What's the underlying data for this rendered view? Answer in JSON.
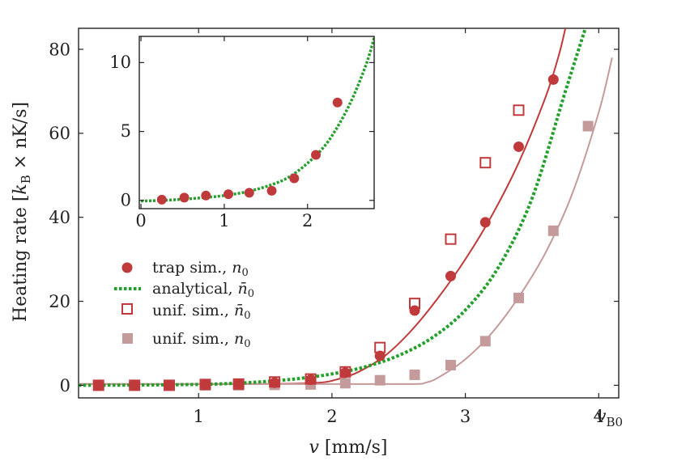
{
  "chart_data": [
    {
      "type": "line",
      "xlabel": "v [mm/s]",
      "ylabel": "Heating rate [k_B × nK/s]",
      "xlim": [
        0.1,
        4.15
      ],
      "ylim": [
        -3,
        85
      ],
      "x_ticks": [
        1,
        2,
        3,
        4
      ],
      "x_tick_labels": [
        "1",
        "2",
        "3",
        "4"
      ],
      "extra_x_label": "v_B0",
      "y_ticks": [
        0,
        20,
        40,
        60,
        80
      ],
      "y_tick_labels": [
        "0",
        "20",
        "40",
        "60",
        "80"
      ],
      "grid": false,
      "legend_position": "lower-left",
      "series": [
        {
          "name": "trap sim., n_0",
          "marker": "filled-circle",
          "color": "#c0393b",
          "x": [
            0.25,
            0.52,
            0.78,
            1.05,
            1.3,
            1.57,
            1.84,
            2.1,
            2.36,
            2.62,
            2.89,
            3.15,
            3.4,
            3.66
          ],
          "y": [
            0,
            0,
            0,
            0.2,
            0.3,
            0.6,
            1.3,
            3.0,
            7.0,
            17.8,
            26.0,
            38.8,
            56.8,
            72.8
          ]
        },
        {
          "name": "analytical, n̄_0",
          "style": "dotted-line",
          "color": "#22a02a",
          "x": [
            0.1,
            0.5,
            1.0,
            1.25,
            1.5,
            1.75,
            2.0,
            2.25,
            2.5,
            2.75,
            3.0,
            3.25,
            3.5,
            3.75,
            3.9
          ],
          "y": [
            0,
            0.05,
            0.2,
            0.45,
            0.9,
            1.6,
            2.7,
            4.4,
            7.1,
            11.3,
            17.9,
            28.2,
            44.5,
            70.0,
            85.0
          ]
        },
        {
          "name": "unif. sim., n̄_0",
          "marker": "open-square",
          "color": "#c0393b",
          "x": [
            0.25,
            0.52,
            0.78,
            1.05,
            1.3,
            1.57,
            1.84,
            2.1,
            2.36,
            2.62,
            2.89,
            3.15,
            3.4
          ],
          "y": [
            0,
            0,
            0,
            0.2,
            0.3,
            0.8,
            1.5,
            3.2,
            9.0,
            19.5,
            34.8,
            53.0,
            65.5
          ]
        },
        {
          "name": "unif. sim., n_0",
          "marker": "filled-square",
          "color": "#c49a9a",
          "x": [
            0.25,
            0.52,
            0.78,
            1.05,
            1.3,
            1.57,
            1.84,
            2.1,
            2.36,
            2.62,
            2.89,
            3.15,
            3.4,
            3.66,
            3.92
          ],
          "y": [
            0,
            0,
            0,
            0,
            0,
            0.1,
            0.2,
            0.5,
            1.2,
            2.5,
            4.8,
            10.5,
            20.8,
            36.8,
            61.7
          ]
        },
        {
          "name": "",
          "style": "solid-line",
          "color": "#c0393b",
          "x": [
            0.1,
            1.0,
            1.6,
            1.9,
            2.05,
            2.2,
            2.4,
            2.6,
            2.8,
            3.0,
            3.2,
            3.4,
            3.6,
            3.7,
            3.75
          ],
          "y": [
            0.3,
            0.3,
            0.35,
            0.6,
            1.5,
            3.2,
            7.1,
            13.2,
            21.0,
            30.0,
            40.5,
            53.0,
            68.5,
            78.5,
            85.0
          ]
        },
        {
          "name": "",
          "style": "solid-line",
          "color": "#c49a9a",
          "x": [
            0.1,
            1.0,
            2.0,
            2.6,
            2.7,
            2.8,
            3.0,
            3.2,
            3.4,
            3.6,
            3.8,
            4.0,
            4.1
          ],
          "y": [
            0.3,
            0.3,
            0.3,
            0.3,
            0.6,
            1.9,
            6.2,
            12.5,
            21.0,
            31.5,
            45.5,
            65.0,
            78.0
          ]
        }
      ]
    },
    {
      "type": "line",
      "xlim": [
        -0.02,
        2.8
      ],
      "ylim": [
        -0.6,
        11.9
      ],
      "x_ticks": [
        0,
        1,
        2
      ],
      "x_tick_labels": [
        "0",
        "1",
        "2"
      ],
      "y_ticks": [
        0,
        5,
        10
      ],
      "y_tick_labels": [
        "0",
        "5",
        "10"
      ],
      "series": [
        {
          "name": "",
          "marker": "filled-circle",
          "color": "#c0393b",
          "x": [
            0.25,
            0.52,
            0.78,
            1.05,
            1.3,
            1.57,
            1.84,
            2.1,
            2.36
          ],
          "y": [
            0.05,
            0.2,
            0.35,
            0.45,
            0.55,
            0.7,
            1.6,
            3.3,
            7.1
          ]
        },
        {
          "name": "",
          "style": "dotted-line",
          "color": "#22a02a",
          "x": [
            0.0,
            0.25,
            0.5,
            0.75,
            1.0,
            1.25,
            1.5,
            1.75,
            2.0,
            2.25,
            2.5,
            2.7,
            2.8
          ],
          "y": [
            -0.05,
            0.0,
            0.08,
            0.2,
            0.35,
            0.6,
            1.0,
            1.6,
            2.7,
            4.3,
            6.9,
            9.8,
            11.8
          ]
        }
      ]
    }
  ]
}
